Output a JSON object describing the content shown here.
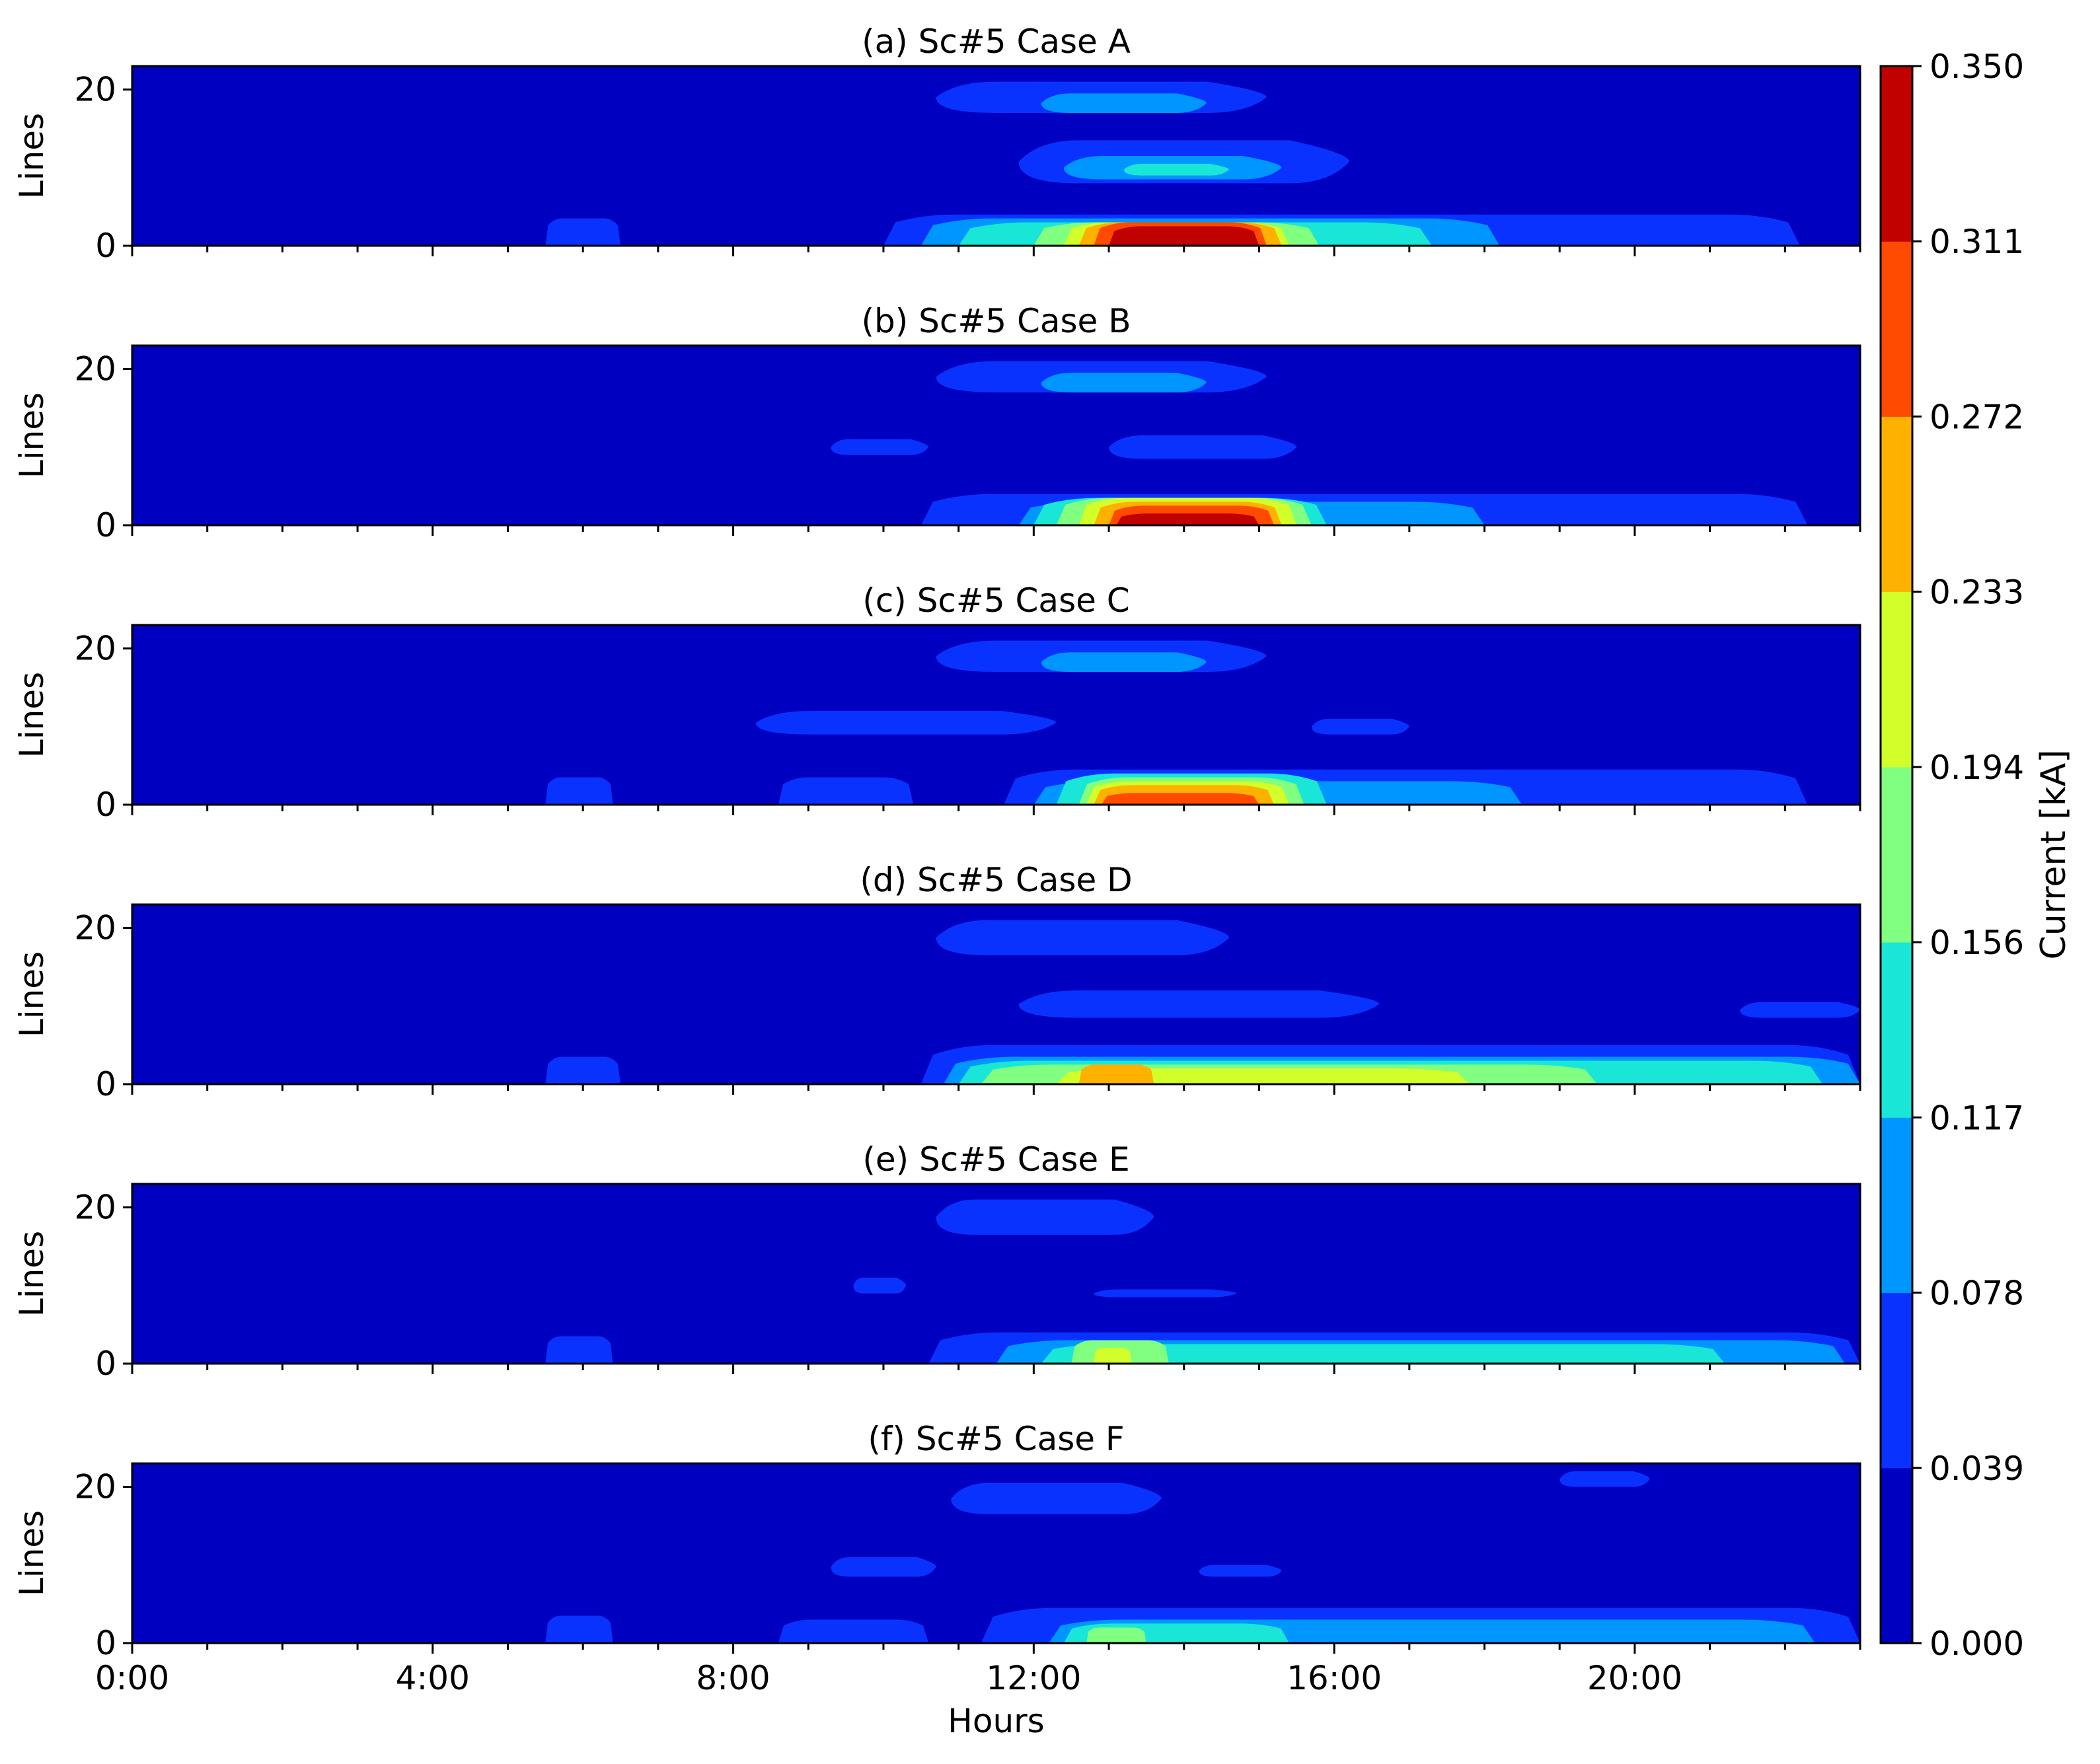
{
  "chart_data": {
    "type": "heatmap",
    "subtype": "filled-contour",
    "xlabel": "Hours",
    "ylabel": "Lines",
    "x_ticks": [
      "0:00",
      "4:00",
      "8:00",
      "12:00",
      "16:00",
      "20:00"
    ],
    "y_ticks": [
      "0",
      "20"
    ],
    "xlim_hours": [
      0,
      23
    ],
    "ylim": [
      0,
      23
    ],
    "colorbar": {
      "label": "Current [kA]",
      "levels": [
        "0.000",
        "0.039",
        "0.078",
        "0.117",
        "0.156",
        "0.194",
        "0.233",
        "0.272",
        "0.311",
        "0.350"
      ],
      "colors": [
        "#0000c0",
        "#0a32ff",
        "#0096ff",
        "#19e6d7",
        "#80ff80",
        "#d2ff29",
        "#ffb100",
        "#ff4a00",
        "#c10000"
      ]
    },
    "panels": [
      {
        "title": "(a) Sc#5 Case A",
        "regions": [
          {
            "level": 1,
            "x0": 10.7,
            "x1": 15.1,
            "y0": 17,
            "y1": 21
          },
          {
            "level": 2,
            "x0": 12.1,
            "x1": 14.3,
            "y0": 17,
            "y1": 19.5
          },
          {
            "level": 1,
            "x0": 11.8,
            "x1": 16.2,
            "y0": 8,
            "y1": 13.5
          },
          {
            "level": 2,
            "x0": 12.4,
            "x1": 15.3,
            "y0": 8.5,
            "y1": 11.5
          },
          {
            "level": 3,
            "x0": 13.2,
            "x1": 14.6,
            "y0": 9,
            "y1": 10.5
          },
          {
            "level": 1,
            "x0": 5.5,
            "x1": 6.5,
            "y0": 0,
            "y1": 3.5
          },
          {
            "level": 1,
            "x0": 10.0,
            "x1": 22.2,
            "y0": 0,
            "y1": 4
          },
          {
            "level": 2,
            "x0": 10.5,
            "x1": 18.2,
            "y0": 0,
            "y1": 3.5
          },
          {
            "level": 3,
            "x0": 11.0,
            "x1": 17.3,
            "y0": 0,
            "y1": 3
          },
          {
            "level": 4,
            "x0": 12.0,
            "x1": 15.8,
            "y0": 0,
            "y1": 3
          },
          {
            "level": 5,
            "x0": 12.4,
            "x1": 15.4,
            "y0": 0,
            "y1": 3
          },
          {
            "level": 6,
            "x0": 12.6,
            "x1": 15.3,
            "y0": 0,
            "y1": 3
          },
          {
            "level": 7,
            "x0": 12.8,
            "x1": 15.1,
            "y0": 0,
            "y1": 3
          },
          {
            "level": 8,
            "x0": 13.0,
            "x1": 15.0,
            "y0": 0,
            "y1": 2.5
          }
        ]
      },
      {
        "title": "(b) Sc#5 Case B",
        "regions": [
          {
            "level": 1,
            "x0": 10.7,
            "x1": 15.1,
            "y0": 17,
            "y1": 21
          },
          {
            "level": 2,
            "x0": 12.1,
            "x1": 14.3,
            "y0": 17,
            "y1": 19.5
          },
          {
            "level": 1,
            "x0": 9.3,
            "x1": 10.6,
            "y0": 9,
            "y1": 11
          },
          {
            "level": 1,
            "x0": 13.0,
            "x1": 15.5,
            "y0": 8.5,
            "y1": 11.5
          },
          {
            "level": 1,
            "x0": 10.5,
            "x1": 22.3,
            "y0": 0,
            "y1": 4
          },
          {
            "level": 2,
            "x0": 11.8,
            "x1": 18.0,
            "y0": 0,
            "y1": 3
          },
          {
            "level": 3,
            "x0": 12.0,
            "x1": 15.9,
            "y0": 0,
            "y1": 3.5
          },
          {
            "level": 4,
            "x0": 12.3,
            "x1": 15.7,
            "y0": 0,
            "y1": 3.5
          },
          {
            "level": 5,
            "x0": 12.6,
            "x1": 15.5,
            "y0": 0,
            "y1": 3.5
          },
          {
            "level": 6,
            "x0": 12.8,
            "x1": 15.3,
            "y0": 0,
            "y1": 3
          },
          {
            "level": 7,
            "x0": 13.0,
            "x1": 15.2,
            "y0": 0,
            "y1": 2.5
          },
          {
            "level": 8,
            "x0": 13.1,
            "x1": 15.0,
            "y0": 0,
            "y1": 1.5
          }
        ]
      },
      {
        "title": "(c) Sc#5 Case C",
        "regions": [
          {
            "level": 1,
            "x0": 10.7,
            "x1": 15.1,
            "y0": 17,
            "y1": 21
          },
          {
            "level": 2,
            "x0": 12.1,
            "x1": 14.3,
            "y0": 17,
            "y1": 19.5
          },
          {
            "level": 1,
            "x0": 8.3,
            "x1": 12.3,
            "y0": 9,
            "y1": 12
          },
          {
            "level": 1,
            "x0": 15.7,
            "x1": 17.0,
            "y0": 9,
            "y1": 11
          },
          {
            "level": 1,
            "x0": 5.5,
            "x1": 6.4,
            "y0": 0,
            "y1": 3.5
          },
          {
            "level": 1,
            "x0": 8.6,
            "x1": 10.4,
            "y0": 0,
            "y1": 3.5
          },
          {
            "level": 1,
            "x0": 11.6,
            "x1": 22.3,
            "y0": 0,
            "y1": 4.5
          },
          {
            "level": 2,
            "x0": 12.0,
            "x1": 18.5,
            "y0": 0,
            "y1": 3
          },
          {
            "level": 3,
            "x0": 12.3,
            "x1": 15.9,
            "y0": 0,
            "y1": 4
          },
          {
            "level": 4,
            "x0": 12.6,
            "x1": 15.6,
            "y0": 0,
            "y1": 3.5
          },
          {
            "level": 5,
            "x0": 12.7,
            "x1": 15.4,
            "y0": 0,
            "y1": 3
          },
          {
            "level": 6,
            "x0": 12.8,
            "x1": 15.2,
            "y0": 0,
            "y1": 2.5
          },
          {
            "level": 7,
            "x0": 12.9,
            "x1": 15.0,
            "y0": 0,
            "y1": 1.5
          }
        ]
      },
      {
        "title": "(d) Sc#5 Case D",
        "regions": [
          {
            "level": 1,
            "x0": 10.7,
            "x1": 14.6,
            "y0": 16.5,
            "y1": 21
          },
          {
            "level": 1,
            "x0": 11.8,
            "x1": 16.6,
            "y0": 8.5,
            "y1": 12
          },
          {
            "level": 1,
            "x0": 21.4,
            "x1": 23.0,
            "y0": 8.5,
            "y1": 10.5
          },
          {
            "level": 1,
            "x0": 5.5,
            "x1": 6.5,
            "y0": 0,
            "y1": 3.5
          },
          {
            "level": 1,
            "x0": 10.5,
            "x1": 23.0,
            "y0": 0,
            "y1": 5
          },
          {
            "level": 2,
            "x0": 10.8,
            "x1": 23.0,
            "y0": 0,
            "y1": 3.5
          },
          {
            "level": 3,
            "x0": 11.0,
            "x1": 22.5,
            "y0": 0,
            "y1": 3
          },
          {
            "level": 4,
            "x0": 11.3,
            "x1": 19.5,
            "y0": 0,
            "y1": 2.5
          },
          {
            "level": 5,
            "x0": 12.3,
            "x1": 17.8,
            "y0": 0,
            "y1": 2
          },
          {
            "level": 6,
            "x0": 12.6,
            "x1": 13.6,
            "y0": 0,
            "y1": 2.5
          }
        ]
      },
      {
        "title": "(e) Sc#5 Case E",
        "regions": [
          {
            "level": 1,
            "x0": 10.7,
            "x1": 13.6,
            "y0": 16.5,
            "y1": 21
          },
          {
            "level": 1,
            "x0": 9.6,
            "x1": 10.3,
            "y0": 9,
            "y1": 11
          },
          {
            "level": 1,
            "x0": 12.8,
            "x1": 14.7,
            "y0": 8.5,
            "y1": 9.5
          },
          {
            "level": 1,
            "x0": 5.5,
            "x1": 6.4,
            "y0": 0,
            "y1": 3.5
          },
          {
            "level": 1,
            "x0": 10.6,
            "x1": 23.0,
            "y0": 0,
            "y1": 4
          },
          {
            "level": 2,
            "x0": 11.5,
            "x1": 22.8,
            "y0": 0,
            "y1": 3
          },
          {
            "level": 3,
            "x0": 12.1,
            "x1": 21.2,
            "y0": 0,
            "y1": 2.5
          },
          {
            "level": 4,
            "x0": 12.5,
            "x1": 13.8,
            "y0": 0,
            "y1": 3
          },
          {
            "level": 5,
            "x0": 12.8,
            "x1": 13.3,
            "y0": 0,
            "y1": 2
          }
        ]
      },
      {
        "title": "(f) Sc#5 Case F",
        "regions": [
          {
            "level": 1,
            "x0": 10.9,
            "x1": 13.7,
            "y0": 16.5,
            "y1": 20.5
          },
          {
            "level": 1,
            "x0": 19.0,
            "x1": 20.2,
            "y0": 20,
            "y1": 22
          },
          {
            "level": 1,
            "x0": 9.3,
            "x1": 10.7,
            "y0": 8.5,
            "y1": 11
          },
          {
            "level": 1,
            "x0": 14.2,
            "x1": 15.3,
            "y0": 8.5,
            "y1": 10
          },
          {
            "level": 1,
            "x0": 5.5,
            "x1": 6.4,
            "y0": 0,
            "y1": 3.5
          },
          {
            "level": 1,
            "x0": 8.6,
            "x1": 10.6,
            "y0": 0,
            "y1": 3
          },
          {
            "level": 1,
            "x0": 11.3,
            "x1": 23.0,
            "y0": 0,
            "y1": 4.5
          },
          {
            "level": 2,
            "x0": 12.2,
            "x1": 22.4,
            "y0": 0,
            "y1": 3
          },
          {
            "level": 3,
            "x0": 12.4,
            "x1": 15.4,
            "y0": 0,
            "y1": 2.5
          },
          {
            "level": 4,
            "x0": 12.7,
            "x1": 13.5,
            "y0": 0,
            "y1": 2
          }
        ]
      }
    ]
  }
}
